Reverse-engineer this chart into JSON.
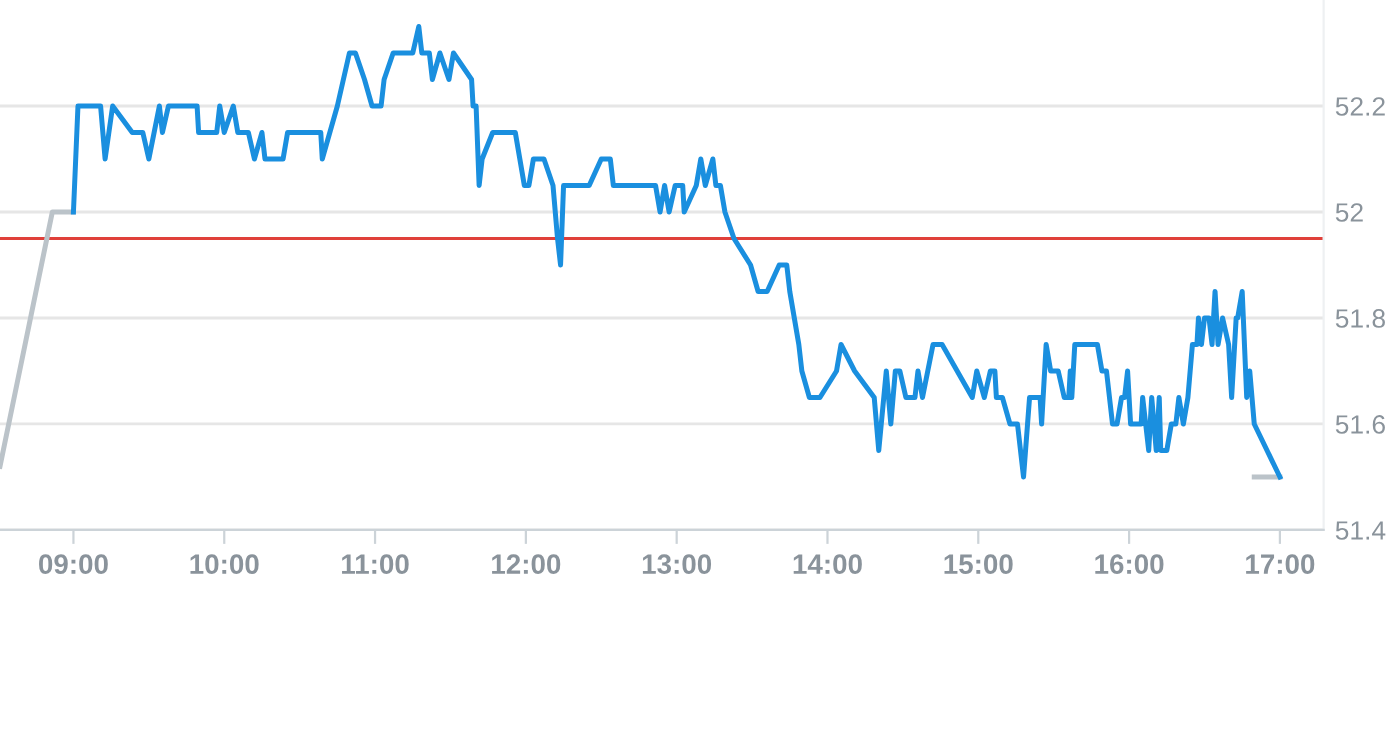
{
  "chart_data": {
    "type": "line",
    "xlim": [
      8.513,
      17.29
    ],
    "ylim": [
      51.4,
      52.4
    ],
    "xticks": [
      {
        "value": 9,
        "label": "09:00"
      },
      {
        "value": 10,
        "label": "10:00"
      },
      {
        "value": 11,
        "label": "11:00"
      },
      {
        "value": 12,
        "label": "12:00"
      },
      {
        "value": 13,
        "label": "13:00"
      },
      {
        "value": 14,
        "label": "14:00"
      },
      {
        "value": 15,
        "label": "15:00"
      },
      {
        "value": 16,
        "label": "16:00"
      },
      {
        "value": 17,
        "label": "17:00"
      }
    ],
    "yticks": [
      51.4,
      51.6,
      51.8,
      52,
      52.2
    ],
    "grid": "y",
    "legend": false,
    "marker": "none",
    "line_style": "solid",
    "ref_lines": [
      {
        "axis": "y",
        "value": 51.95,
        "color": "#e0403a"
      }
    ],
    "series": [
      {
        "color": "#bbc3c9",
        "x": [
          8.513,
          8.86,
          9.0
        ],
        "values": [
          51.52,
          52.0,
          52.0
        ]
      },
      {
        "color": "#bbc3c9",
        "x": [
          16.83,
          17.0
        ],
        "values": [
          51.5,
          51.5
        ]
      },
      {
        "color": "#1a8fdf",
        "x": [
          9.0,
          9.03,
          9.18,
          9.21,
          9.26,
          9.39,
          9.46,
          9.5,
          9.57,
          9.59,
          9.63,
          9.82,
          9.83,
          9.95,
          9.97,
          10.0,
          10.06,
          10.09,
          10.16,
          10.2,
          10.25,
          10.27,
          10.39,
          10.42,
          10.64,
          10.65,
          10.75,
          10.83,
          10.87,
          10.93,
          10.98,
          11.04,
          11.06,
          11.12,
          11.25,
          11.29,
          11.31,
          11.36,
          11.38,
          11.43,
          11.49,
          11.52,
          11.64,
          11.65,
          11.67,
          11.69,
          11.71,
          11.78,
          11.93,
          11.96,
          11.99,
          12.02,
          12.05,
          12.12,
          12.18,
          12.21,
          12.23,
          12.25,
          12.42,
          12.5,
          12.56,
          12.58,
          12.86,
          12.89,
          12.92,
          12.95,
          12.99,
          13.04,
          13.05,
          13.13,
          13.16,
          13.19,
          13.24,
          13.26,
          13.29,
          13.32,
          13.38,
          13.49,
          13.54,
          13.6,
          13.68,
          13.73,
          13.75,
          13.81,
          13.83,
          13.88,
          13.95,
          14.06,
          14.09,
          14.18,
          14.31,
          14.34,
          14.39,
          14.42,
          14.45,
          14.48,
          14.52,
          14.58,
          14.6,
          14.63,
          14.7,
          14.76,
          14.96,
          14.99,
          15.04,
          15.08,
          15.11,
          15.12,
          15.16,
          15.21,
          15.26,
          15.3,
          15.34,
          15.41,
          15.42,
          15.45,
          15.48,
          15.53,
          15.57,
          15.6,
          15.61,
          15.62,
          15.64,
          15.79,
          15.82,
          15.85,
          15.89,
          15.92,
          15.95,
          15.97,
          15.99,
          16.01,
          16.08,
          16.09,
          16.13,
          16.15,
          16.18,
          16.2,
          16.21,
          16.25,
          16.28,
          16.31,
          16.33,
          16.36,
          16.39,
          16.42,
          16.45,
          16.46,
          16.48,
          16.5,
          16.53,
          16.55,
          16.57,
          16.59,
          16.62,
          16.66,
          16.68,
          16.71,
          16.72,
          16.75,
          16.78,
          16.8,
          16.83,
          17.0
        ],
        "values": [
          52.0,
          52.2,
          52.2,
          52.1,
          52.2,
          52.15,
          52.15,
          52.1,
          52.2,
          52.15,
          52.2,
          52.2,
          52.15,
          52.15,
          52.2,
          52.15,
          52.2,
          52.15,
          52.15,
          52.1,
          52.15,
          52.1,
          52.1,
          52.15,
          52.15,
          52.1,
          52.2,
          52.3,
          52.3,
          52.25,
          52.2,
          52.2,
          52.25,
          52.3,
          52.3,
          52.35,
          52.3,
          52.3,
          52.25,
          52.3,
          52.25,
          52.3,
          52.25,
          52.2,
          52.2,
          52.05,
          52.1,
          52.15,
          52.15,
          52.1,
          52.05,
          52.05,
          52.1,
          52.1,
          52.05,
          51.95,
          51.9,
          52.05,
          52.05,
          52.1,
          52.1,
          52.05,
          52.05,
          52.0,
          52.05,
          52.0,
          52.05,
          52.05,
          52.0,
          52.05,
          52.1,
          52.05,
          52.1,
          52.05,
          52.05,
          52.0,
          51.95,
          51.9,
          51.85,
          51.85,
          51.9,
          51.9,
          51.85,
          51.75,
          51.7,
          51.65,
          51.65,
          51.7,
          51.75,
          51.7,
          51.65,
          51.55,
          51.7,
          51.6,
          51.7,
          51.7,
          51.65,
          51.65,
          51.7,
          51.65,
          51.75,
          51.75,
          51.65,
          51.7,
          51.65,
          51.7,
          51.7,
          51.65,
          51.65,
          51.6,
          51.6,
          51.5,
          51.65,
          51.65,
          51.6,
          51.75,
          51.7,
          51.7,
          51.65,
          51.65,
          51.7,
          51.65,
          51.75,
          51.75,
          51.7,
          51.7,
          51.6,
          51.6,
          51.65,
          51.65,
          51.7,
          51.6,
          51.6,
          51.65,
          51.55,
          51.65,
          51.55,
          51.65,
          51.55,
          51.55,
          51.6,
          51.6,
          51.65,
          51.6,
          51.65,
          51.75,
          51.75,
          51.8,
          51.75,
          51.8,
          51.8,
          51.75,
          51.85,
          51.75,
          51.8,
          51.75,
          51.65,
          51.8,
          51.8,
          51.85,
          51.65,
          51.7,
          51.6,
          51.5
        ]
      }
    ]
  }
}
